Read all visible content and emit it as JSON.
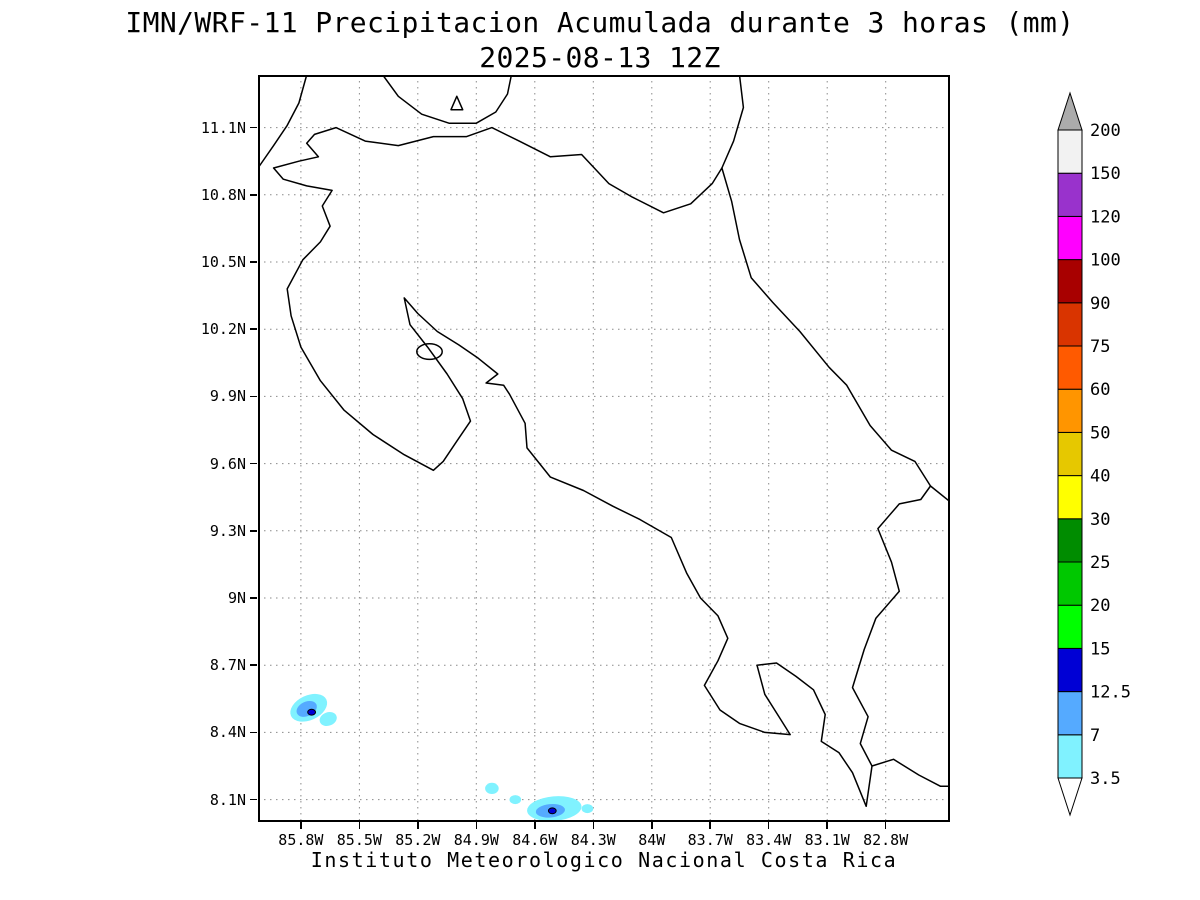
{
  "title": {
    "line1": "IMN/WRF-11 Precipitacion Acumulada durante 3 horas (mm)",
    "line2": "2025-08-13 12Z"
  },
  "footer": "Instituto Meteorologico Nacional Costa Rica",
  "map": {
    "extent": {
      "lon_min": -86.02,
      "lon_max": -82.47,
      "lat_min": 8.0,
      "lat_max": 11.335
    },
    "lat_ticks": [
      {
        "label": "11.1N",
        "value": 11.1
      },
      {
        "label": "10.8N",
        "value": 10.8
      },
      {
        "label": "10.5N",
        "value": 10.5
      },
      {
        "label": "10.2N",
        "value": 10.2
      },
      {
        "label": "9.9N",
        "value": 9.9
      },
      {
        "label": "9.6N",
        "value": 9.6
      },
      {
        "label": "9.3N",
        "value": 9.3
      },
      {
        "label": "9N",
        "value": 9
      },
      {
        "label": "8.7N",
        "value": 8.7
      },
      {
        "label": "8.4N",
        "value": 8.4
      },
      {
        "label": "8.1N",
        "value": 8.1
      }
    ],
    "lon_ticks": [
      {
        "label": "85.8W",
        "value": -85.8
      },
      {
        "label": "85.5W",
        "value": -85.5
      },
      {
        "label": "85.2W",
        "value": -85.2
      },
      {
        "label": "84.9W",
        "value": -84.9
      },
      {
        "label": "84.6W",
        "value": -84.6
      },
      {
        "label": "84.3W",
        "value": -84.3
      },
      {
        "label": "84W",
        "value": -84
      },
      {
        "label": "83.7W",
        "value": -83.7
      },
      {
        "label": "83.4W",
        "value": -83.4
      },
      {
        "label": "83.1W",
        "value": -83.1
      },
      {
        "label": "82.8W",
        "value": -82.8
      }
    ],
    "precip_cells": [
      {
        "lon": -85.76,
        "lat": 8.51,
        "rx": 0.1,
        "ry": 0.055,
        "rot": -25,
        "band": 0
      },
      {
        "lon": -85.66,
        "lat": 8.46,
        "rx": 0.045,
        "ry": 0.03,
        "rot": -20,
        "band": 0
      },
      {
        "lon": -85.77,
        "lat": 8.505,
        "rx": 0.055,
        "ry": 0.032,
        "rot": -25,
        "band": 1
      },
      {
        "lon": -85.745,
        "lat": 8.49,
        "rx": 0.02,
        "ry": 0.013,
        "rot": 0,
        "band": 2,
        "outline": true
      },
      {
        "lon": -84.82,
        "lat": 8.15,
        "rx": 0.035,
        "ry": 0.025,
        "rot": 0,
        "band": 0
      },
      {
        "lon": -84.7,
        "lat": 8.1,
        "rx": 0.03,
        "ry": 0.02,
        "rot": 0,
        "band": 0
      },
      {
        "lon": -84.5,
        "lat": 8.06,
        "rx": 0.14,
        "ry": 0.055,
        "rot": -5,
        "band": 0
      },
      {
        "lon": -84.52,
        "lat": 8.05,
        "rx": 0.075,
        "ry": 0.03,
        "rot": -5,
        "band": 1
      },
      {
        "lon": -84.51,
        "lat": 8.05,
        "rx": 0.02,
        "ry": 0.013,
        "rot": 0,
        "band": 2,
        "outline": true
      },
      {
        "lon": -84.33,
        "lat": 8.06,
        "rx": 0.03,
        "ry": 0.02,
        "rot": 0,
        "band": 0
      }
    ]
  },
  "colorbar": {
    "levels": [
      "3.5",
      "7",
      "12.5",
      "15",
      "20",
      "25",
      "30",
      "40",
      "50",
      "60",
      "75",
      "90",
      "100",
      "120",
      "150",
      "200"
    ],
    "band_colors": [
      "#80F2FF",
      "#55AAFF",
      "#0000D5",
      "#00FF00",
      "#00C800",
      "#008C00",
      "#FFFF00",
      "#E6C800",
      "#FF9500",
      "#FF5A00",
      "#D93400",
      "#A80000",
      "#FF00FF",
      "#9932CC",
      "#F2F2F2"
    ],
    "over_color": "#ABABAB",
    "under_color": "#FFFFFF"
  }
}
